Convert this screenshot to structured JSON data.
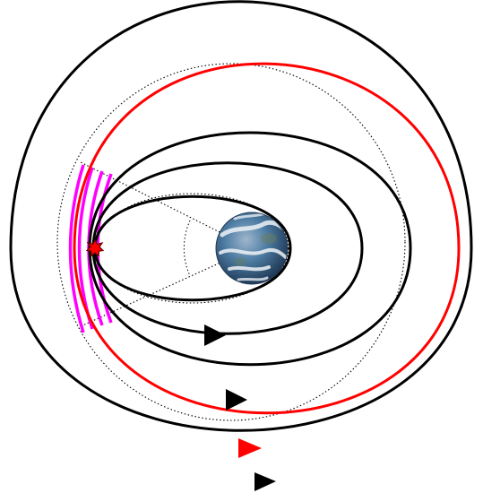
{
  "diagram": {
    "colors": {
      "background": "#ffffff",
      "orbit_primary": "#000000",
      "orbit_highlight": "#ff0000",
      "thrust_arc": "#ff00ff",
      "guide_line": "#000000",
      "burn_marker": "#ff0000",
      "earth_ocean": "#2f5f86",
      "earth_cloud": "#e9eef4"
    },
    "orbits": [
      {
        "id": "orbit-1",
        "color_role": "orbit_primary",
        "has_arrow": true
      },
      {
        "id": "orbit-2",
        "color_role": "orbit_primary",
        "has_arrow": false
      },
      {
        "id": "orbit-3",
        "color_role": "orbit_primary",
        "has_arrow": true
      },
      {
        "id": "orbit-4",
        "color_role": "orbit_highlight",
        "has_arrow": true
      },
      {
        "id": "orbit-5",
        "color_role": "orbit_primary",
        "has_arrow": true
      }
    ],
    "thrust_arc_count": 4,
    "icons": {
      "central_body": "earth-icon",
      "burn_point": "burn-point-icon",
      "direction": "direction-arrow-icon"
    }
  }
}
